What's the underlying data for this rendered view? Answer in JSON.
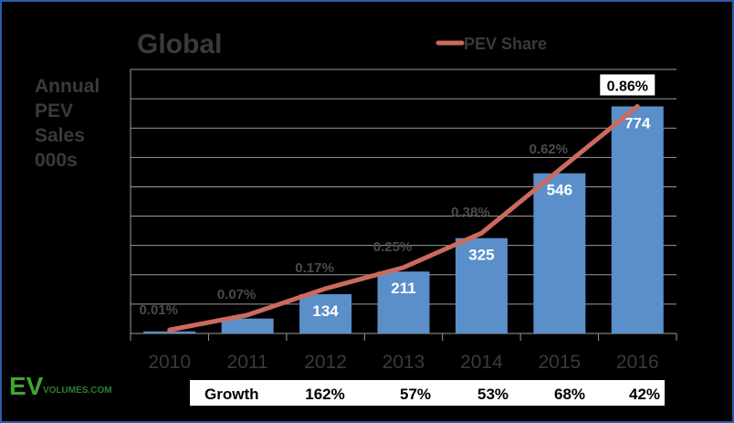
{
  "chart_data": {
    "type": "bar",
    "title": "Global",
    "ylabel": "Annual PEV Sales 000s",
    "ylabel_lines": [
      "Annual",
      "PEV",
      "Sales",
      "000s"
    ],
    "categories": [
      "2010",
      "2011",
      "2012",
      "2013",
      "2014",
      "2015",
      "2016"
    ],
    "series": [
      {
        "values": [
          7,
          51,
          134,
          211,
          325,
          546,
          774
        ],
        "color": "#5b8fc9",
        "labels": [
          "",
          "",
          "134",
          "211",
          "325",
          "546",
          "774"
        ]
      },
      {
        "name": "PEV Share",
        "type": "line",
        "values": [
          0.01,
          0.07,
          0.17,
          0.25,
          0.38,
          0.62,
          0.86
        ],
        "labels": [
          "0.01%",
          "0.07%",
          "0.17%",
          "0.25%",
          "0.38%",
          "0.62%",
          "0.86%"
        ],
        "color": "#cd6a5e"
      }
    ],
    "ylim": [
      0,
      900
    ],
    "share_ylim": [
      0,
      1.0
    ],
    "grid": true,
    "legend": "top-right",
    "growth_row": {
      "label": "Growth",
      "values": [
        "162%",
        "57%",
        "53%",
        "68%",
        "42%"
      ]
    }
  },
  "logo": {
    "main": "EV",
    "rest": "VOLUMES.COM"
  },
  "colors": {
    "background": "#000000",
    "frame": "#2f5aa8",
    "bar": "#5b8fc9",
    "line": "#cd6a5e",
    "grid": "#9a9a9a"
  }
}
